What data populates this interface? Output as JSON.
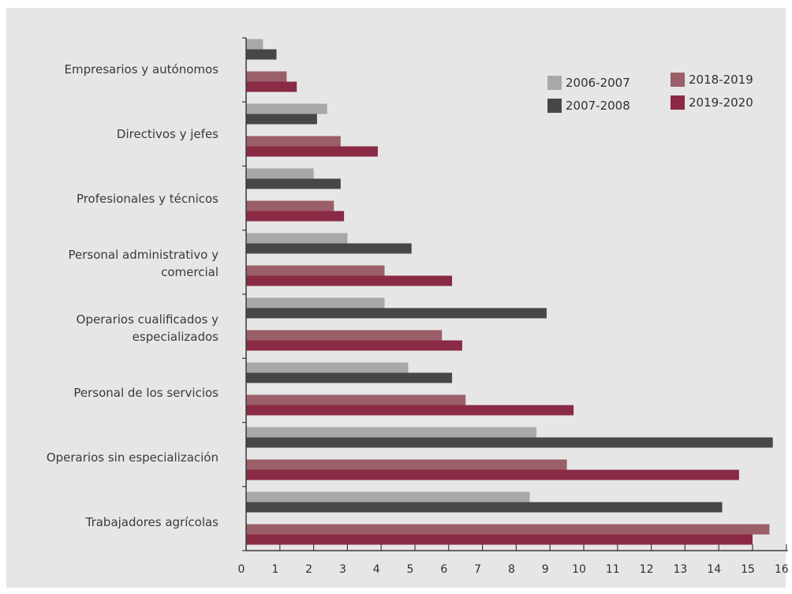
{
  "chart_data": {
    "type": "bar",
    "orientation": "horizontal",
    "categories": [
      [
        "Empresarios y autónomos"
      ],
      [
        "Directivos y jefes"
      ],
      [
        "Profesionales y técnicos"
      ],
      [
        "Personal administrativo y",
        "comercial"
      ],
      [
        "Operarios cualificados y",
        "especializados"
      ],
      [
        "Personal de los servicios"
      ],
      [
        "Operarios sin especialización"
      ],
      [
        "Trabajadores agrícolas"
      ]
    ],
    "series": [
      {
        "name": "2006-2007",
        "color": "#a8a8a8",
        "values": [
          0.5,
          2.4,
          2.0,
          3.0,
          4.1,
          4.8,
          8.6,
          8.4
        ]
      },
      {
        "name": "2007-2008",
        "color": "#474747",
        "values": [
          0.9,
          2.1,
          2.8,
          4.9,
          8.9,
          6.1,
          15.6,
          14.1
        ]
      },
      {
        "name": "2018-2019",
        "color": "#9a5f68",
        "values": [
          1.2,
          2.8,
          2.6,
          4.1,
          5.8,
          6.5,
          9.5,
          15.5
        ]
      },
      {
        "name": "2019-2020",
        "color": "#8a2a45",
        "values": [
          1.5,
          3.9,
          2.9,
          6.1,
          6.4,
          9.7,
          14.6,
          15.0
        ]
      }
    ],
    "xlim": [
      0,
      16
    ],
    "xticks": [
      "0",
      "1",
      "2",
      "3",
      "4",
      "5",
      "6",
      "7",
      "8",
      "9",
      "10",
      "11",
      "12",
      "13",
      "14",
      "15",
      "16"
    ],
    "legend": {
      "placement": "top-right",
      "columns": [
        [
          "2006-2007",
          "2007-2008"
        ],
        [
          "2018-2019",
          "2019-2020"
        ]
      ]
    },
    "grid": false,
    "background": "#e6e6e6",
    "axis_color": "#3a3a3a"
  }
}
